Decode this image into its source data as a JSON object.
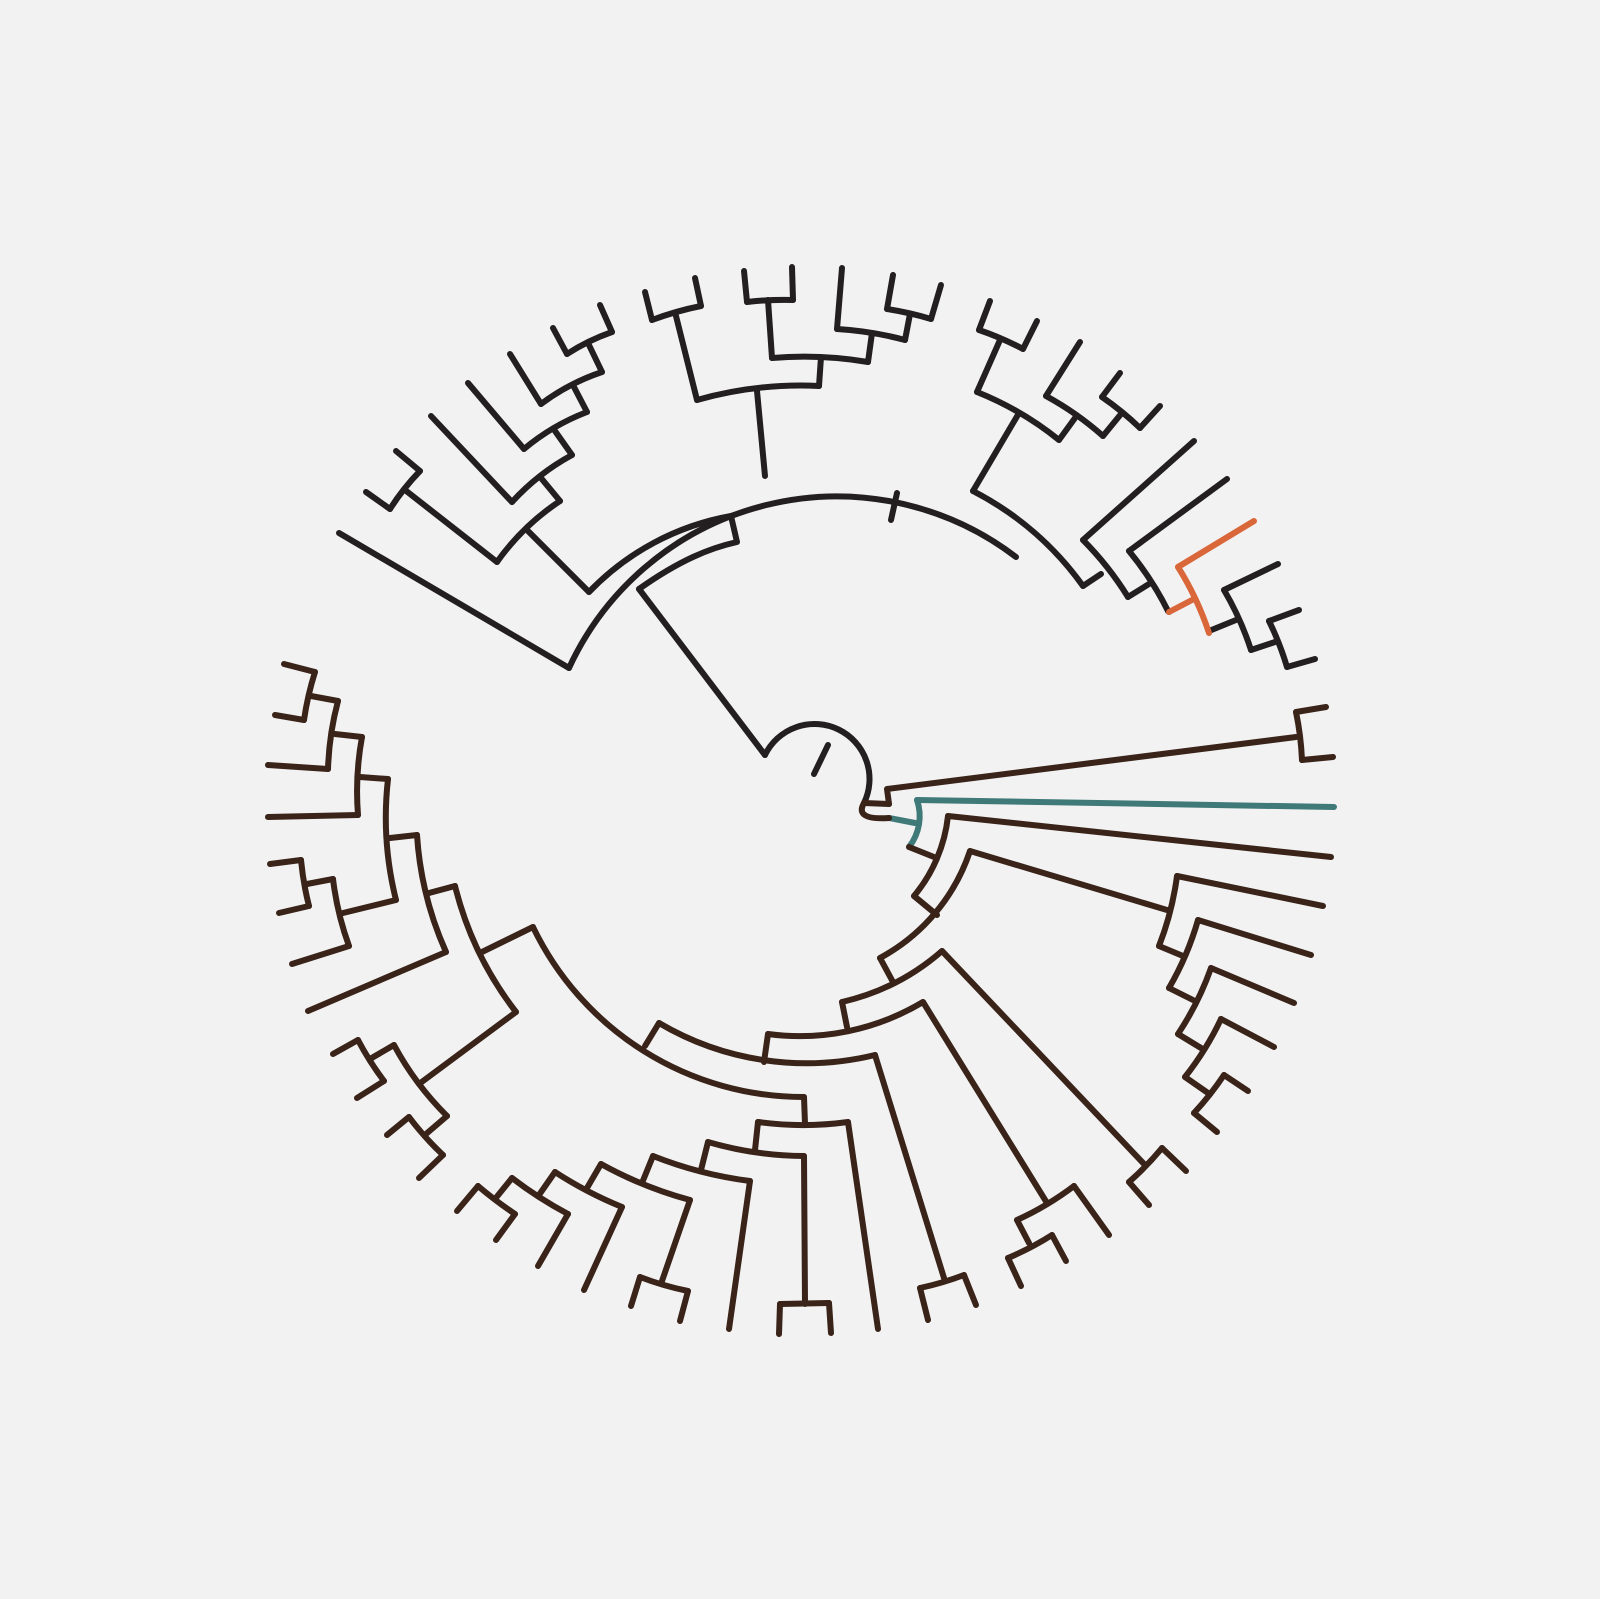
{
  "figure": {
    "kind": "circular phylogenetic tree",
    "background": "#f2f2f2",
    "colors": {
      "upper_clade": "#231f20",
      "lower_clade": "#3a2318",
      "highlight_orange": "#d9673a",
      "highlight_teal": "#3f7a78"
    }
  }
}
